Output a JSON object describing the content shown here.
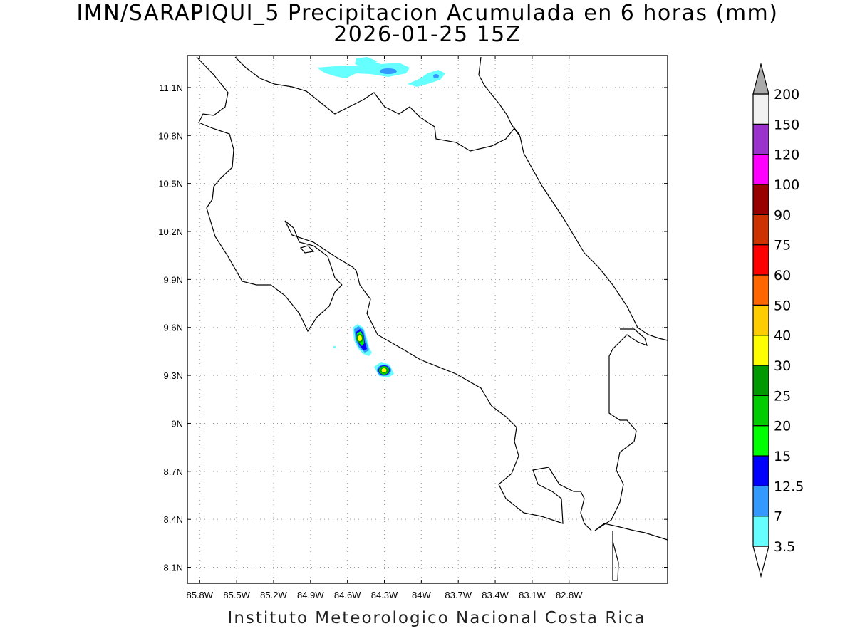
{
  "title_line1": "IMN/SARAPIQUI_5 Precipitacion Acumulada en 6 horas (mm)",
  "title_line2": "2026-01-25 15Z",
  "footer": "Instituto Meteorologico Nacional Costa Rica",
  "map": {
    "lon_range": [
      -85.9,
      -82.0
    ],
    "lat_range": [
      8.0,
      11.3
    ],
    "lon_ticks": [
      "85.8W",
      "85.5W",
      "85.2W",
      "84.9W",
      "84.6W",
      "84.3W",
      "84W",
      "83.7W",
      "83.4W",
      "83.1W",
      "82.8W"
    ],
    "lon_tick_values": [
      -85.8,
      -85.5,
      -85.2,
      -84.9,
      -84.6,
      -84.3,
      -84.0,
      -83.7,
      -83.4,
      -83.1,
      -82.8
    ],
    "lat_ticks": [
      "11.1N",
      "10.8N",
      "10.5N",
      "10.2N",
      "9.9N",
      "9.6N",
      "9.3N",
      "9N",
      "8.7N",
      "8.4N",
      "8.1N"
    ],
    "lat_tick_values": [
      11.1,
      10.8,
      10.5,
      10.2,
      9.9,
      9.6,
      9.3,
      9.0,
      8.7,
      8.4,
      8.1
    ],
    "grid": true
  },
  "colorbar": {
    "labels": [
      "3.5",
      "7",
      "12.5",
      "15",
      "20",
      "25",
      "30",
      "40",
      "50",
      "60",
      "75",
      "90",
      "100",
      "120",
      "150",
      "200"
    ],
    "colors": [
      "#ffffff",
      "#66ffff",
      "#3399ff",
      "#0000ff",
      "#00ff00",
      "#00cc00",
      "#009900",
      "#ffff00",
      "#ffcc00",
      "#ff6600",
      "#ff0000",
      "#cc3300",
      "#990000",
      "#ff00ff",
      "#9933cc",
      "#f2f2f2",
      "#aaaaaa"
    ]
  }
}
